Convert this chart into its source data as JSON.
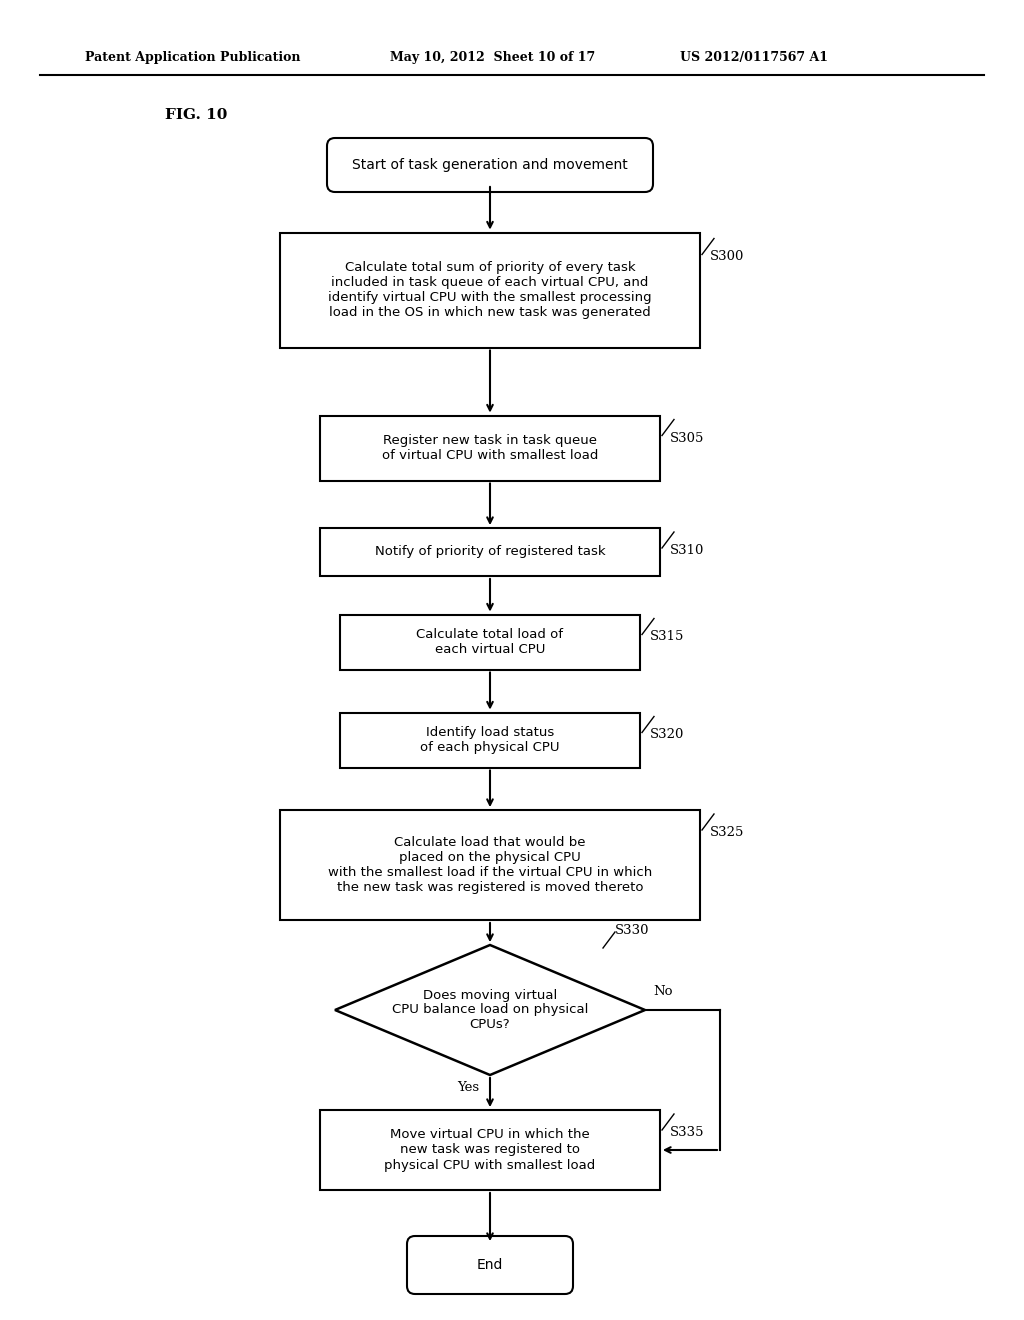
{
  "bg_color": "#ffffff",
  "header_left": "Patent Application Publication",
  "header_mid": "May 10, 2012  Sheet 10 of 17",
  "header_right": "US 2012/0117567 A1",
  "fig_label": "FIG. 10",
  "start_label": "Start of task generation and movement",
  "s300_label": "Calculate total sum of priority of every task\nincluded in task queue of each virtual CPU, and\nidentify virtual CPU with the smallest processing\nload in the OS in which new task was generated",
  "s305_label": "Register new task in task queue\nof virtual CPU with smallest load",
  "s310_label": "Notify of priority of registered task",
  "s315_label": "Calculate total load of\neach virtual CPU",
  "s320_label": "Identify load status\nof each physical CPU",
  "s325_label": "Calculate load that would be\nplaced on the physical CPU\nwith the smallest load if the virtual CPU in which\nthe new task was registered is moved thereto",
  "s330_label": "Does moving virtual\nCPU balance load on physical\nCPUs?",
  "s335_label": "Move virtual CPU in which the\nnew task was registered to\nphysical CPU with smallest load",
  "end_label": "End"
}
